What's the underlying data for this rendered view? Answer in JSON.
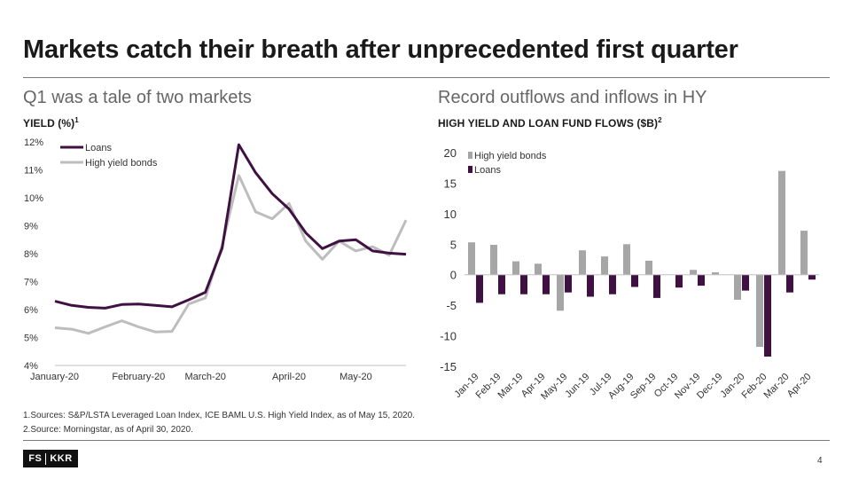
{
  "title": "Markets catch their breath after unprecedented first quarter",
  "left": {
    "subtitle": "Q1 was a tale of two markets",
    "caption": "YIELD (%)",
    "caption_sup": "1"
  },
  "right": {
    "subtitle": "Record outflows and inflows in HY",
    "caption": "HIGH YIELD AND LOAN FUND FLOWS ($B)",
    "caption_sup": "2"
  },
  "footnotes": [
    "1.Sources: S&P/LSTA Leveraged Loan Index, ICE BAML U.S. High Yield Index, as of May 15, 2020.",
    "2.Source: Morningstar, as of April 30, 2020."
  ],
  "logo": {
    "left": "FS",
    "right": "KKR"
  },
  "page_number": "4",
  "colors": {
    "loans": "#3f1142",
    "hy": "#bdbdbd",
    "hy_bar": "#a6a6a6"
  },
  "chart_data": [
    {
      "type": "line",
      "title": "YIELD (%)",
      "ylim": [
        4,
        12
      ],
      "yticks": [
        "4%",
        "5%",
        "6%",
        "7%",
        "8%",
        "9%",
        "10%",
        "11%",
        "12%"
      ],
      "x_tick_labels": [
        "January-20",
        "February-20",
        "March-20",
        "April-20",
        "May-20"
      ],
      "x_tick_index": [
        0,
        5,
        9,
        14,
        18
      ],
      "legend": "top-left",
      "series": [
        {
          "name": "Loans",
          "values": [
            6.3,
            6.15,
            6.08,
            6.05,
            6.18,
            6.2,
            6.15,
            6.1,
            6.35,
            6.62,
            8.2,
            11.9,
            10.9,
            10.15,
            9.6,
            8.75,
            8.18,
            8.45,
            8.5,
            8.1,
            8.02,
            7.98
          ]
        },
        {
          "name": "High yield bonds",
          "values": [
            5.35,
            5.3,
            5.15,
            5.38,
            5.6,
            5.38,
            5.2,
            5.22,
            6.2,
            6.42,
            8.3,
            10.8,
            9.5,
            9.25,
            9.8,
            8.45,
            7.8,
            8.45,
            8.1,
            8.25,
            7.95,
            9.2
          ]
        }
      ]
    },
    {
      "type": "bar",
      "title": "HIGH YIELD AND LOAN FUND FLOWS ($B)",
      "ylim": [
        -15,
        20
      ],
      "yticks": [
        "-15",
        "-10",
        "-5",
        "0",
        "5",
        "10",
        "15",
        "20"
      ],
      "legend": "top-left",
      "categories": [
        "Jan-19",
        "Feb-19",
        "Mar-19",
        "Apr-19",
        "May-19",
        "Jun-19",
        "Jul-19",
        "Aug-19",
        "Sep-19",
        "Oct-19",
        "Nov-19",
        "Dec-19",
        "Jan-20",
        "Feb-20",
        "Mar-20",
        "Apr-20"
      ],
      "series": [
        {
          "name": "High yield bonds",
          "values": [
            5.3,
            4.9,
            2.2,
            1.8,
            -5.9,
            4.0,
            3.0,
            5.0,
            2.3,
            0.0,
            0.8,
            0.4,
            -4.1,
            -11.8,
            17.0,
            7.2
          ]
        },
        {
          "name": "Loans",
          "values": [
            -4.6,
            -3.2,
            -3.2,
            -3.2,
            -2.9,
            -3.6,
            -3.2,
            -2.0,
            -3.8,
            -2.1,
            -1.8,
            0.0,
            -2.6,
            -13.4,
            -2.9,
            -0.8
          ]
        }
      ]
    }
  ]
}
